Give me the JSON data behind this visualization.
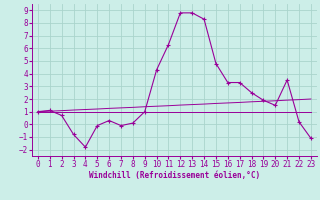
{
  "xlabel": "Windchill (Refroidissement éolien,°C)",
  "background_color": "#cceee8",
  "grid_color": "#aad4cc",
  "line_color": "#990099",
  "x_data": [
    0,
    1,
    2,
    3,
    4,
    5,
    6,
    7,
    8,
    9,
    10,
    11,
    12,
    13,
    14,
    15,
    16,
    17,
    18,
    19,
    20,
    21,
    22,
    23
  ],
  "y_main": [
    1.0,
    1.1,
    0.7,
    -0.8,
    -1.8,
    -0.1,
    0.3,
    -0.1,
    0.1,
    1.0,
    4.3,
    6.3,
    8.8,
    8.8,
    8.3,
    4.8,
    3.3,
    3.3,
    2.5,
    1.9,
    1.5,
    3.5,
    0.2,
    -1.1
  ],
  "y_line1": [
    1.0,
    1.0,
    1.0,
    1.0,
    1.0,
    1.0,
    1.0,
    1.0,
    1.0,
    1.0,
    1.0,
    1.0,
    1.0,
    1.0,
    1.0,
    1.0,
    1.0,
    1.0,
    1.0,
    1.0,
    1.0,
    1.0,
    1.0,
    1.0
  ],
  "y_line2": [
    1.0,
    1.04,
    1.08,
    1.13,
    1.17,
    1.21,
    1.26,
    1.3,
    1.34,
    1.39,
    1.43,
    1.47,
    1.52,
    1.56,
    1.6,
    1.65,
    1.69,
    1.73,
    1.78,
    1.82,
    1.86,
    1.91,
    1.95,
    2.0
  ],
  "ylim": [
    -2.5,
    9.5
  ],
  "xlim": [
    -0.5,
    23.5
  ],
  "yticks": [
    -2,
    -1,
    0,
    1,
    2,
    3,
    4,
    5,
    6,
    7,
    8,
    9
  ],
  "xticks": [
    0,
    1,
    2,
    3,
    4,
    5,
    6,
    7,
    8,
    9,
    10,
    11,
    12,
    13,
    14,
    15,
    16,
    17,
    18,
    19,
    20,
    21,
    22,
    23
  ],
  "tick_fontsize": 5.5,
  "xlabel_fontsize": 5.5
}
